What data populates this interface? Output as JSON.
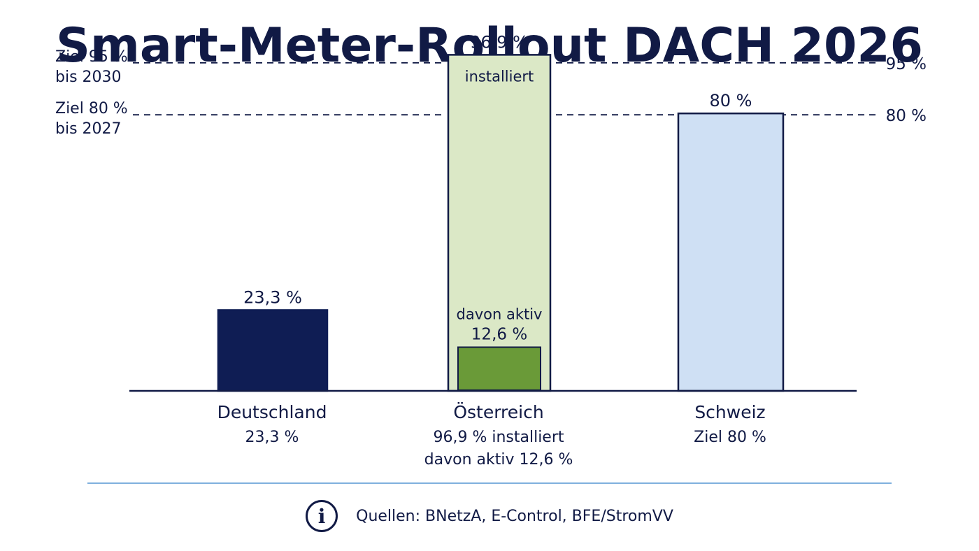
{
  "icons": {
    "footer": "info-circle-icon"
  },
  "colors": {
    "navy": "#111a45",
    "germany_bar": "#0f1d54",
    "austria_installed": "#dbe8c6",
    "austria_active": "#6a9a38",
    "switzerland_bar": "#cfe0f4",
    "active_text": "#5e9432",
    "divider": "#7fb0de"
  },
  "chart_data": {
    "type": "bar",
    "title": "Smart-Meter-Rollout DACH 2026",
    "categories": [
      "Deutschland",
      "Österreich",
      "Schweiz"
    ],
    "ylim": [
      0,
      100
    ],
    "grid": false,
    "bars": [
      {
        "category": "Deutschland",
        "value": 23.3,
        "value_label": "23,3 %",
        "sublabel": "23,3 %"
      },
      {
        "category": "Österreich",
        "value": 96.9,
        "value_label": "96,9 %",
        "inner_label": "installiert",
        "sublabel": "96,9 % installiert",
        "active": {
          "value": 12.6,
          "label_line1": "davon aktiv",
          "label_line2": "12,6 %",
          "sublabel": "davon aktiv 12,6 %"
        }
      },
      {
        "category": "Schweiz",
        "value": 80,
        "value_label": "80 %",
        "sublabel": "Ziel 80 %"
      }
    ],
    "reference_lines": [
      {
        "value": 95,
        "left_line1": "Ziel 95 %",
        "left_line2": "bis 2030",
        "right_label": "95 %"
      },
      {
        "value": 80,
        "left_line1": "Ziel 80 %",
        "left_line2": "bis 2027",
        "right_label": "80 %"
      }
    ]
  },
  "footer": {
    "sources": "Quellen: BNetzA, E-Control, BFE/StromVV"
  }
}
